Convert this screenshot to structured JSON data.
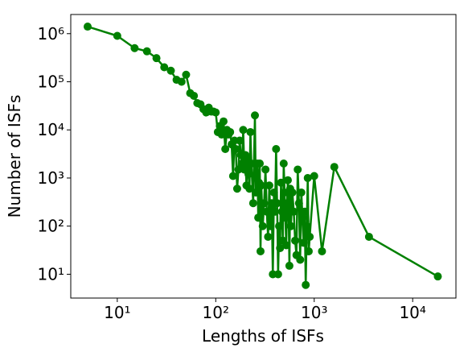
{
  "chart_data": {
    "type": "line",
    "xlabel": "Lengths of ISFs",
    "ylabel": "Number of ISFs",
    "xscale": "log",
    "yscale": "log",
    "xlim": [
      3.37,
      27500
    ],
    "ylim": [
      3.2,
      2500000
    ],
    "xticks": [
      {
        "value": 10,
        "label": "10¹"
      },
      {
        "value": 100,
        "label": "10²"
      },
      {
        "value": 1000,
        "label": "10³"
      },
      {
        "value": 10000,
        "label": "10⁴"
      }
    ],
    "yticks": [
      {
        "value": 10,
        "label": "10¹"
      },
      {
        "value": 100,
        "label": "10²"
      },
      {
        "value": 1000,
        "label": "10³"
      },
      {
        "value": 10000,
        "label": "10⁴"
      },
      {
        "value": 100000,
        "label": "10⁵"
      },
      {
        "value": 1000000,
        "label": "10⁶"
      }
    ],
    "x": [
      5,
      10,
      15,
      20,
      25,
      30,
      35,
      40,
      45,
      50,
      55,
      60,
      65,
      70,
      75,
      80,
      85,
      90,
      95,
      100,
      105,
      110,
      115,
      120,
      125,
      130,
      135,
      140,
      145,
      150,
      155,
      160,
      165,
      170,
      175,
      180,
      185,
      190,
      195,
      200,
      205,
      210,
      215,
      220,
      225,
      230,
      240,
      250,
      255,
      260,
      265,
      270,
      275,
      280,
      285,
      290,
      300,
      310,
      320,
      330,
      340,
      350,
      360,
      370,
      380,
      390,
      400,
      410,
      420,
      430,
      440,
      450,
      460,
      470,
      480,
      490,
      500,
      510,
      520,
      530,
      540,
      550,
      560,
      570,
      580,
      600,
      620,
      640,
      660,
      680,
      700,
      720,
      740,
      760,
      780,
      800,
      820,
      840,
      860,
      880,
      900,
      1000,
      1200,
      1600,
      3600,
      18000
    ],
    "series": [
      {
        "color": "#008000",
        "values": [
          1400000,
          900000,
          500000,
          430000,
          310000,
          200000,
          170000,
          110000,
          100000,
          140000,
          58000,
          51000,
          36000,
          34000,
          27000,
          23000,
          29000,
          24000,
          24000,
          23000,
          9000,
          12000,
          8000,
          15000,
          4000,
          10000,
          8000,
          9000,
          5000,
          1100,
          6000,
          4000,
          600,
          1500,
          6000,
          3000,
          2000,
          10000,
          1500,
          3000,
          700,
          2500,
          1200,
          600,
          9000,
          2000,
          300,
          20000,
          500,
          1000,
          2000,
          150,
          800,
          2000,
          30,
          700,
          100,
          300,
          1500,
          200,
          60,
          700,
          100,
          300,
          10,
          500,
          200,
          4000,
          300,
          10,
          100,
          35,
          800,
          200,
          50,
          2000,
          500,
          150,
          40,
          300,
          900,
          200,
          15,
          600,
          100,
          500,
          200,
          50,
          25,
          1500,
          300,
          20,
          500,
          150,
          45,
          200,
          6,
          100,
          1000,
          30,
          60,
          1100,
          30,
          1700,
          60,
          9
        ]
      }
    ]
  }
}
